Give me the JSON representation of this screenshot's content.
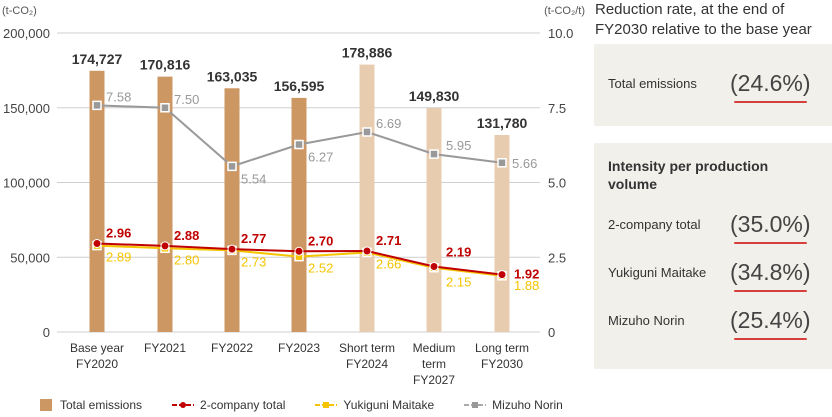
{
  "chart_data": {
    "type": "bar+line",
    "categories": [
      [
        "Base year",
        "FY2020"
      ],
      [
        "FY2021"
      ],
      [
        "FY2022"
      ],
      [
        "FY2023"
      ],
      [
        "Short term",
        "FY2024"
      ],
      [
        "Medium",
        "term",
        "FY2027"
      ],
      [
        "Long term",
        "FY2030"
      ]
    ],
    "left_axis": {
      "unit": "(t-CO₂)",
      "ticks": [
        "0",
        "50,000",
        "100,000",
        "150,000",
        "200,000"
      ],
      "tick_values": [
        0,
        50000,
        100000,
        150000,
        200000
      ],
      "range": [
        0,
        200000
      ]
    },
    "right_axis": {
      "unit": "(t-CO₂/t)",
      "ticks": [
        "0",
        "2.5",
        "5.0",
        "7.5",
        "10.0"
      ],
      "tick_values": [
        0,
        2.5,
        5.0,
        7.5,
        10.0
      ],
      "range": [
        0,
        10
      ]
    },
    "bars": {
      "name": "Total emissions",
      "values": [
        174727,
        170816,
        163035,
        156595,
        178886,
        149830,
        131780
      ],
      "labels": [
        "174,727",
        "170,816",
        "163,035",
        "156,595",
        "178,886",
        "149,830",
        "131,780"
      ],
      "colors": [
        "#cd9763",
        "#cd9763",
        "#cd9763",
        "#cd9763",
        "#e8ccb0",
        "#e8ccb0",
        "#e8ccb0"
      ]
    },
    "series": [
      {
        "name": "2-company total",
        "color": "#c00000",
        "marker": "circle",
        "values": [
          2.96,
          2.88,
          2.77,
          2.7,
          2.71,
          2.19,
          1.92
        ],
        "labels": [
          "2.96",
          "2.88",
          "2.77",
          "2.70",
          "2.71",
          "2.19",
          "1.92"
        ]
      },
      {
        "name": "Yukiguni Maitake",
        "color": "#f5c400",
        "marker": "square",
        "values": [
          2.89,
          2.8,
          2.73,
          2.52,
          2.66,
          2.15,
          1.88
        ],
        "labels": [
          "2.89",
          "2.80",
          "2.73",
          "2.52",
          "2.66",
          "2.15",
          "1.88"
        ]
      },
      {
        "name": "Mizuho Norin",
        "color": "#999999",
        "marker": "square",
        "values": [
          7.58,
          7.5,
          5.54,
          6.27,
          6.69,
          5.95,
          5.66
        ],
        "labels": [
          "7.58",
          "7.50",
          "5.54",
          "6.27",
          "6.69",
          "5.95",
          "5.66"
        ]
      }
    ],
    "grid": true,
    "legend_position": "bottom"
  },
  "legend": {
    "total": "Total emissions",
    "red": "2-company total",
    "yellow": "Yukiguni Maitake",
    "gray": "Mizuho Norin"
  },
  "panel": {
    "title": "Reduction rate, at the end of FY2030 relative to the base year",
    "total_label": "Total emissions",
    "total_value": "(24.6%)",
    "intensity_title": "Intensity per production volume",
    "rows": [
      {
        "label": "2-company total",
        "value": "(35.0%)"
      },
      {
        "label": "Yukiguni Maitake",
        "value": "(34.8%)"
      },
      {
        "label": "Mizuho Norin",
        "value": "(25.4%)"
      }
    ]
  }
}
